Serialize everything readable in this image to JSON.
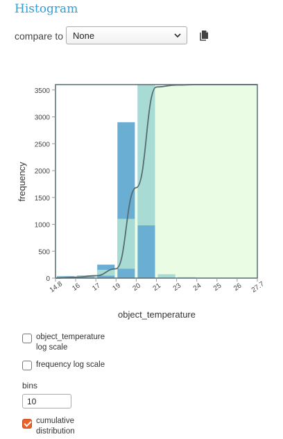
{
  "panel": {
    "title": "Histogram",
    "compare_label": "compare to",
    "compare_value": "None"
  },
  "controls": {
    "log_x_label_line1": "object_temperature",
    "log_x_label_line2": "log scale",
    "log_x_checked": false,
    "log_y_label": "frequency log scale",
    "log_y_checked": false,
    "bins_label": "bins",
    "bins_value": "10",
    "cumulative_label_line1": "cumulative",
    "cumulative_label_line2": "distribution",
    "cumulative_checked": true
  },
  "colors": {
    "accent": "#2e9ed8",
    "bar": "#6aaed4",
    "bar_overlap": "#a8dbd4",
    "cdf_fill": "#eafde4",
    "cdf_line": "#556b70",
    "checkbox_checked": "#e8622a"
  },
  "chart_data": {
    "type": "bar",
    "xlabel": "object_temperature",
    "ylabel": "frequency",
    "xlim": [
      14.8,
      27.7
    ],
    "ylim": [
      0,
      3600
    ],
    "x_ticks": [
      "14.8",
      "16",
      "17",
      "19",
      "20",
      "21",
      "23",
      "24",
      "25",
      "26",
      "27.7"
    ],
    "x_tick_values": [
      14.8,
      16.09,
      17.38,
      18.67,
      19.96,
      21.25,
      22.54,
      23.83,
      25.12,
      26.41,
      27.7
    ],
    "y_ticks": [
      0,
      500,
      1000,
      1500,
      2000,
      2500,
      3000,
      3500
    ],
    "bins": [
      {
        "x0": 14.8,
        "x1": 16.09,
        "count": 35
      },
      {
        "x0": 16.09,
        "x1": 17.38,
        "count": 50
      },
      {
        "x0": 17.38,
        "x1": 18.67,
        "count": 250
      },
      {
        "x0": 18.67,
        "x1": 19.96,
        "count": 2900
      },
      {
        "x0": 19.96,
        "x1": 21.25,
        "count": 3600
      },
      {
        "x0": 21.25,
        "x1": 22.54,
        "count": 70
      },
      {
        "x0": 22.54,
        "x1": 23.83,
        "count": 15
      },
      {
        "x0": 23.83,
        "x1": 25.12,
        "count": 0
      },
      {
        "x0": 25.12,
        "x1": 26.41,
        "count": 0
      },
      {
        "x0": 26.41,
        "x1": 27.7,
        "count": 0
      }
    ],
    "cumulative": true
  }
}
